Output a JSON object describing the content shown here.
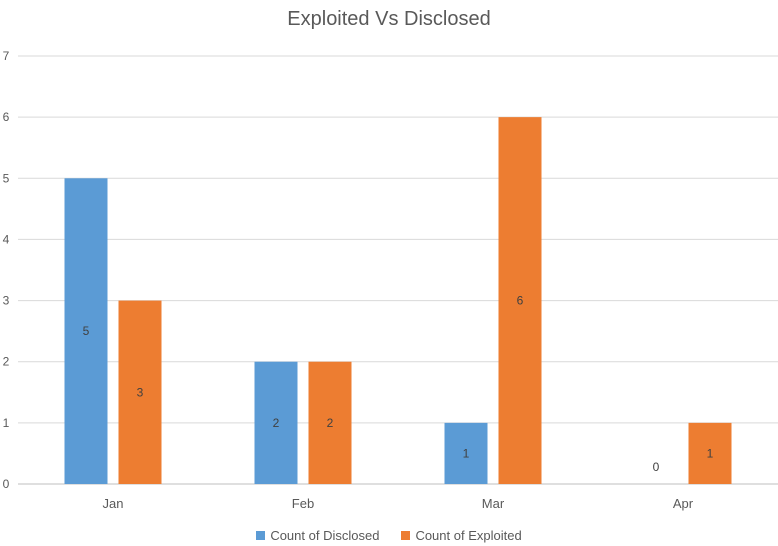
{
  "chart_data": {
    "type": "bar",
    "title": "Exploited Vs Disclosed",
    "xlabel": "",
    "ylabel": "",
    "categories": [
      "Jan",
      "Feb",
      "Mar",
      "Apr"
    ],
    "ylim": [
      0,
      7
    ],
    "yticks": [
      0,
      1,
      2,
      3,
      4,
      5,
      6,
      7
    ],
    "grid": true,
    "legend_position": "bottom",
    "series": [
      {
        "name": "Count of Disclosed",
        "color": "#5B9BD5",
        "values": [
          5,
          2,
          1,
          0
        ]
      },
      {
        "name": "Count of Exploited",
        "color": "#ED7D31",
        "values": [
          3,
          2,
          6,
          1
        ]
      }
    ]
  }
}
